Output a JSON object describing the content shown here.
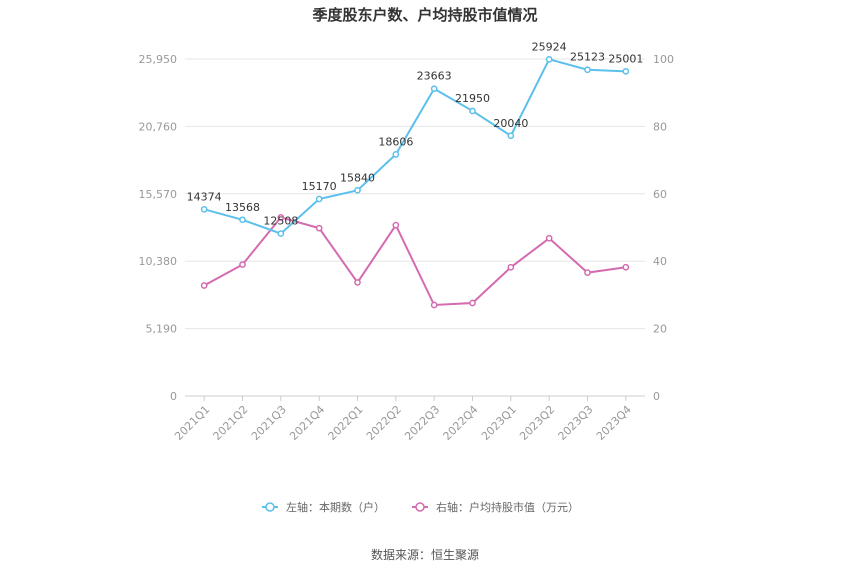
{
  "chart_data": {
    "type": "line",
    "title": "季度股东户数、户均持股市值情况",
    "categories": [
      "2021Q1",
      "2021Q2",
      "2021Q3",
      "2021Q4",
      "2022Q1",
      "2022Q2",
      "2022Q3",
      "2022Q4",
      "2023Q1",
      "2023Q2",
      "2023Q3",
      "2023Q4"
    ],
    "left_axis": {
      "ticks": [
        "0",
        "5,190",
        "10,380",
        "15,570",
        "20,760",
        "25,950"
      ],
      "min": 0,
      "max": 25950
    },
    "right_axis": {
      "ticks": [
        "0",
        "20",
        "40",
        "60",
        "80",
        "100"
      ],
      "min": 0,
      "max": 100
    },
    "series": [
      {
        "name": "左轴：本期数（户）",
        "axis": "left",
        "color": "#5bc0eb",
        "values": [
          14374,
          13568,
          12508,
          15170,
          15840,
          18606,
          23663,
          21950,
          20040,
          25924,
          25123,
          25001
        ],
        "labels": [
          "14374",
          "13568",
          "12508",
          "15170",
          "15840",
          "18606",
          "23663",
          "21950",
          "20040",
          "25924",
          "25123",
          "25001"
        ]
      },
      {
        "name": "右轴：户均持股市值（万元）",
        "axis": "right",
        "color": "#d46bb0",
        "values": [
          32.8,
          39.0,
          53.0,
          49.8,
          33.7,
          50.7,
          27.0,
          27.6,
          38.2,
          46.8,
          36.6,
          38.2
        ]
      }
    ],
    "grid": true,
    "legend_position": "bottom"
  },
  "source": "数据来源：恒生聚源"
}
